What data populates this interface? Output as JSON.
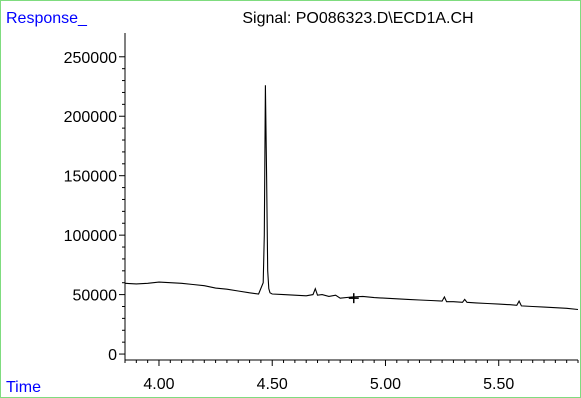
{
  "chart_data": {
    "type": "line",
    "title": "Signal: PO086323.D\\ECD1A.CH",
    "ylabel": "Response_",
    "xlabel": "Time",
    "xlim": [
      3.85,
      5.85
    ],
    "ylim": [
      -5000,
      270000
    ],
    "x_ticks": [
      "4.00",
      "4.50",
      "5.00",
      "5.50"
    ],
    "y_ticks": [
      "0",
      "50000",
      "100000",
      "150000",
      "200000",
      "250000"
    ],
    "x_tick_values": [
      4.0,
      4.5,
      5.0,
      5.5
    ],
    "y_tick_values": [
      0,
      50000,
      100000,
      150000,
      200000,
      250000
    ],
    "grid": false,
    "label_color": "#0000ff",
    "line_color": "#000000",
    "series": [
      {
        "x": [
          3.85,
          3.9,
          3.95,
          4.0,
          4.05,
          4.1,
          4.15,
          4.2,
          4.25,
          4.3,
          4.35,
          4.4,
          4.44,
          4.46,
          4.465,
          4.47,
          4.475,
          4.48,
          4.485,
          4.49,
          4.5,
          4.55,
          4.6,
          4.65,
          4.68,
          4.69,
          4.7,
          4.72,
          4.75,
          4.78,
          4.8,
          4.85,
          4.9,
          4.95,
          5.0,
          5.05,
          5.1,
          5.15,
          5.2,
          5.25,
          5.26,
          5.27,
          5.3,
          5.34,
          5.35,
          5.36,
          5.4,
          5.45,
          5.5,
          5.55,
          5.58,
          5.59,
          5.6,
          5.65,
          5.7,
          5.75,
          5.8,
          5.85
        ],
        "values": [
          59500,
          59000,
          59500,
          60500,
          60000,
          59500,
          58500,
          57500,
          55500,
          54500,
          53000,
          51500,
          50500,
          60000,
          100000,
          226000,
          150000,
          70000,
          55000,
          51500,
          50500,
          50000,
          49500,
          49000,
          50000,
          55000,
          49500,
          50000,
          48500,
          49500,
          47000,
          48000,
          48500,
          47500,
          47000,
          46500,
          46000,
          45500,
          45000,
          44500,
          48000,
          44000,
          44000,
          43500,
          46000,
          43500,
          43000,
          42500,
          42000,
          41500,
          41000,
          44500,
          40500,
          40000,
          39500,
          39000,
          38500,
          37500
        ]
      }
    ],
    "cursor_marker": {
      "x": 4.86,
      "y": 47000
    }
  }
}
